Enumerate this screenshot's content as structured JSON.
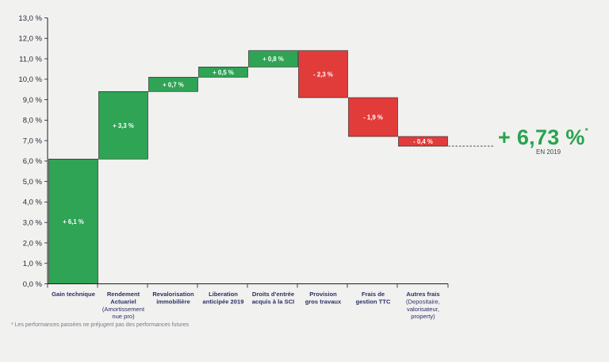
{
  "chart_data": {
    "type": "waterfall",
    "y_tick_labels": [
      "0,0 %",
      "1,0 %",
      "2,0 %",
      "3,0 %",
      "4,0 %",
      "5,0 %",
      "6,0 %",
      "7,0 %",
      "8,0 %",
      "9,0 %",
      "10,0 %",
      "11,0 %",
      "12,0 %",
      "13,0 %"
    ],
    "ylim": [
      0,
      13
    ],
    "grid": false,
    "steps": [
      {
        "category_lines": [
          "Gain technique"
        ],
        "sub_lines": [],
        "delta": 6.1,
        "start": 0,
        "end": 6.1,
        "label": "+ 6,1 %",
        "color": "#2ea454"
      },
      {
        "category_lines": [
          "Rendement",
          "Actuariel"
        ],
        "sub_lines": [
          "(Amortissement",
          "nue pro)"
        ],
        "delta": 3.3,
        "start": 6.1,
        "end": 9.4,
        "label": "+ 3,3 %",
        "color": "#2ea454"
      },
      {
        "category_lines": [
          "Revalorisation",
          "immobilière"
        ],
        "sub_lines": [],
        "delta": 0.7,
        "start": 9.4,
        "end": 10.1,
        "label": "+ 0,7 %",
        "color": "#2ea454"
      },
      {
        "category_lines": [
          "Liberation",
          "anticipée 2019"
        ],
        "sub_lines": [],
        "delta": 0.5,
        "start": 10.1,
        "end": 10.6,
        "label": "+ 0,5 %",
        "color": "#2ea454"
      },
      {
        "category_lines": [
          "Droits d'entrée",
          "acquis à la SCI"
        ],
        "sub_lines": [],
        "delta": 0.8,
        "start": 10.6,
        "end": 11.4,
        "label": "+ 0,8 %",
        "color": "#2ea454"
      },
      {
        "category_lines": [
          "Provision",
          "gros travaux"
        ],
        "sub_lines": [],
        "delta": -2.3,
        "start": 11.4,
        "end": 9.1,
        "label": "- 2,3 %",
        "color": "#e23c3a"
      },
      {
        "category_lines": [
          "Frais de",
          "gestion TTC"
        ],
        "sub_lines": [],
        "delta": -1.9,
        "start": 9.1,
        "end": 7.2,
        "label": "- 1,9 %",
        "color": "#e23c3a"
      },
      {
        "category_lines": [
          "Autres frais"
        ],
        "sub_lines": [
          "(Depositaire,",
          "valorisateur,",
          "property)"
        ],
        "delta": -0.4,
        "start": 7.2,
        "end": 6.73,
        "label": "- 0,4 %",
        "color": "#e23c3a"
      }
    ],
    "result": {
      "value": 6.73,
      "label": "+ 6,73 %",
      "asterisk": "*",
      "sublabel": "EN 2019",
      "color": "#2aa34f"
    }
  },
  "footnote": "* Les performances passées ne préjugent pas des performances futures"
}
